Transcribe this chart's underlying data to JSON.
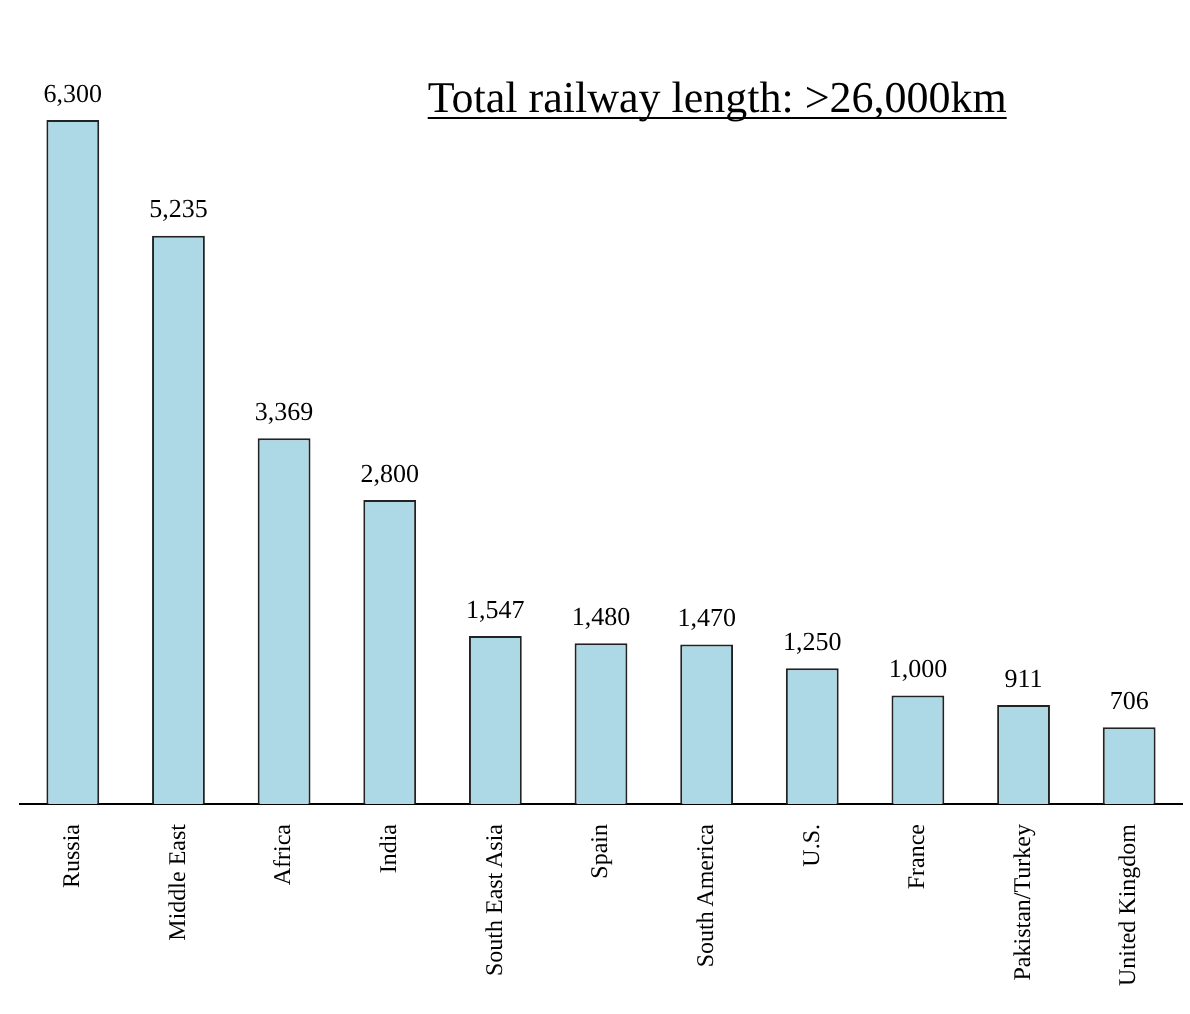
{
  "chart_data": {
    "type": "bar",
    "title": "Total railway length: >26,000km",
    "categories": [
      "Russia",
      "Middle East",
      "Africa",
      "India",
      "South East Asia",
      "Spain",
      "South America",
      "U.S.",
      "France",
      "Pakistan/Turkey",
      "United Kingdom"
    ],
    "values": [
      6300,
      5235,
      3369,
      2800,
      1547,
      1480,
      1470,
      1250,
      1000,
      911,
      706
    ],
    "value_labels": [
      "6,300",
      "5,235",
      "3,369",
      "2,800",
      "1,547",
      "1,480",
      "1,470",
      "1,250",
      "1,000",
      "911",
      "706"
    ],
    "color": "#add8e6",
    "grid": false,
    "legend": false
  }
}
